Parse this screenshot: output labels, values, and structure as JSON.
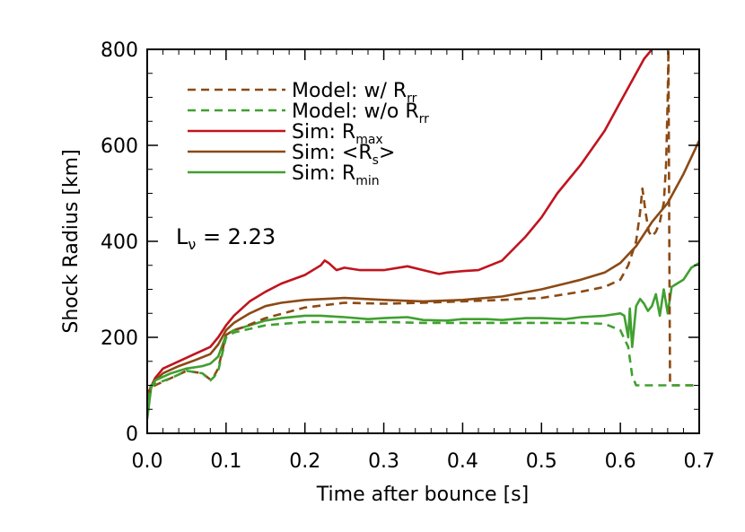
{
  "chart_data": {
    "type": "line",
    "xlabel": "Time after bounce [s]",
    "ylabel": "Shock Radius [km]",
    "xlim": [
      0.0,
      0.7
    ],
    "ylim": [
      0,
      800
    ],
    "xticks": [
      "0.0",
      "0.1",
      "0.2",
      "0.3",
      "0.4",
      "0.5",
      "0.6",
      "0.7"
    ],
    "yticks": [
      "0",
      "200",
      "400",
      "600",
      "800"
    ],
    "grid": false,
    "legend_position": "top-left",
    "annotation": {
      "main": "L",
      "sub": "ν",
      "rest": " = 2.23"
    },
    "series": [
      {
        "name": "Model: w/ R_rr",
        "label_main": "Model: w/ R",
        "label_sub": "rr",
        "color": "#8B4A14",
        "dash": true,
        "x": [
          0.0,
          0.005,
          0.01,
          0.03,
          0.05,
          0.07,
          0.08,
          0.085,
          0.09,
          0.1,
          0.11,
          0.12,
          0.15,
          0.2,
          0.25,
          0.3,
          0.35,
          0.4,
          0.45,
          0.5,
          0.55,
          0.58,
          0.6,
          0.61,
          0.62,
          0.625,
          0.628,
          0.632,
          0.636,
          0.64,
          0.645,
          0.65,
          0.655,
          0.658,
          0.66,
          0.661,
          0.662,
          0.663,
          0.664,
          0.7
        ],
        "y": [
          75,
          95,
          100,
          115,
          130,
          125,
          112,
          120,
          135,
          205,
          215,
          220,
          240,
          262,
          272,
          270,
          272,
          275,
          278,
          282,
          295,
          305,
          320,
          350,
          400,
          460,
          510,
          460,
          420,
          410,
          420,
          440,
          480,
          560,
          700,
          800,
          420,
          100,
          100,
          100
        ]
      },
      {
        "name": "Model: w/o R_rr",
        "label_main": "Model: w/o R",
        "label_sub": "rr",
        "color": "#40A030",
        "dash": true,
        "x": [
          0.0,
          0.003,
          0.005,
          0.03,
          0.05,
          0.07,
          0.08,
          0.085,
          0.09,
          0.1,
          0.11,
          0.15,
          0.2,
          0.25,
          0.3,
          0.35,
          0.4,
          0.45,
          0.5,
          0.55,
          0.58,
          0.6,
          0.61,
          0.615,
          0.62,
          0.63,
          0.65,
          0.7
        ],
        "y": [
          40,
          95,
          100,
          115,
          130,
          125,
          110,
          118,
          130,
          200,
          210,
          225,
          232,
          232,
          232,
          230,
          230,
          230,
          230,
          230,
          228,
          215,
          180,
          120,
          100,
          100,
          100,
          100
        ]
      },
      {
        "name": "Sim: R_max",
        "label_main": "Sim: R",
        "label_sub": "max",
        "color": "#C0141E",
        "dash": false,
        "x": [
          0.0,
          0.01,
          0.02,
          0.04,
          0.06,
          0.08,
          0.09,
          0.1,
          0.11,
          0.13,
          0.15,
          0.17,
          0.2,
          0.22,
          0.225,
          0.23,
          0.24,
          0.25,
          0.27,
          0.3,
          0.33,
          0.35,
          0.37,
          0.38,
          0.4,
          0.42,
          0.45,
          0.48,
          0.5,
          0.52,
          0.55,
          0.58,
          0.6,
          0.62,
          0.63,
          0.64,
          0.645
        ],
        "y": [
          80,
          115,
          135,
          150,
          165,
          180,
          200,
          225,
          245,
          275,
          295,
          312,
          330,
          350,
          360,
          355,
          340,
          345,
          340,
          340,
          348,
          340,
          332,
          335,
          338,
          340,
          360,
          410,
          450,
          500,
          560,
          630,
          690,
          750,
          780,
          800,
          810
        ]
      },
      {
        "name": "Sim: <R_s>",
        "label_main": "Sim: <R",
        "label_sub": "s",
        "label_end": ">",
        "color": "#8B4A14",
        "dash": false,
        "x": [
          0.0,
          0.01,
          0.02,
          0.04,
          0.06,
          0.08,
          0.09,
          0.1,
          0.11,
          0.13,
          0.15,
          0.17,
          0.2,
          0.25,
          0.3,
          0.35,
          0.4,
          0.45,
          0.5,
          0.55,
          0.58,
          0.6,
          0.62,
          0.64,
          0.66,
          0.68,
          0.7
        ],
        "y": [
          80,
          110,
          125,
          140,
          152,
          165,
          185,
          215,
          230,
          250,
          265,
          272,
          278,
          282,
          278,
          275,
          278,
          285,
          300,
          320,
          335,
          355,
          390,
          440,
          480,
          540,
          610
        ]
      },
      {
        "name": "Sim: R_min",
        "label_main": "Sim: R",
        "label_sub": "min",
        "color": "#40A030",
        "dash": false,
        "x": [
          0.0,
          0.005,
          0.01,
          0.03,
          0.05,
          0.07,
          0.08,
          0.09,
          0.1,
          0.11,
          0.13,
          0.15,
          0.17,
          0.2,
          0.22,
          0.25,
          0.28,
          0.3,
          0.33,
          0.35,
          0.38,
          0.4,
          0.43,
          0.45,
          0.48,
          0.5,
          0.53,
          0.55,
          0.58,
          0.6,
          0.605,
          0.61,
          0.612,
          0.615,
          0.62,
          0.625,
          0.63,
          0.635,
          0.64,
          0.645,
          0.65,
          0.655,
          0.66,
          0.665,
          0.67,
          0.68,
          0.69,
          0.7
        ],
        "y": [
          30,
          95,
          110,
          125,
          135,
          140,
          145,
          160,
          205,
          215,
          225,
          235,
          240,
          245,
          245,
          242,
          238,
          240,
          242,
          236,
          235,
          238,
          238,
          236,
          240,
          240,
          238,
          242,
          245,
          250,
          245,
          200,
          260,
          180,
          265,
          280,
          270,
          255,
          265,
          290,
          245,
          300,
          250,
          305,
          310,
          320,
          345,
          355
        ]
      }
    ]
  }
}
